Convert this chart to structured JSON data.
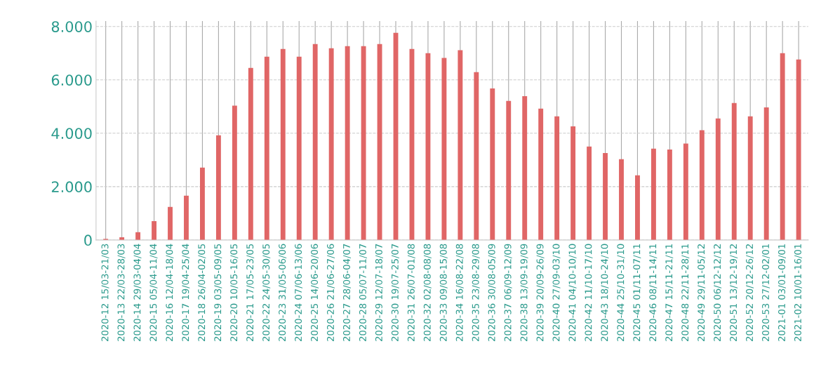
{
  "chart_data": {
    "type": "bar",
    "categories": [
      "2020-12 15/03-21/03",
      "2020-13 22/03-28/03",
      "2020-14 29/03-04/04",
      "2020-15 05/04-11/04",
      "2020-16 12/04-18/04",
      "2020-17 19/04-25/04",
      "2020-18 26/04-02/05",
      "2020-19 03/05-09/05",
      "2020-20 10/05-16/05",
      "2020-21 17/05-23/05",
      "2020-22 24/05-30/05",
      "2020-23 31/05-06/06",
      "2020-24 07/06-13/06",
      "2020-25 14/06-20/06",
      "2020-26 21/06-27/06",
      "2020-27 28/06-04/07",
      "2020-28 05/07-11/07",
      "2020-29 12/07-18/07",
      "2020-30 19/07-25/07",
      "2020-31 26/07-01/08",
      "2020-32 02/08-08/08",
      "2020-33 09/08-15/08",
      "2020-34 16/08-22/08",
      "2020-35 23/08-29/08",
      "2020-36 30/08-05/09",
      "2020-37 06/09-12/09",
      "2020-38 13/09-19/09",
      "2020-39 20/09-26/09",
      "2020-40 27/09-03/10",
      "2020-41 04/10-10/10",
      "2020-42 11/10-17/10",
      "2020-43 18/10-24/10",
      "2020-44 25/10-31/10",
      "2020-45 01/11-07/11",
      "2020-46 08/11-14/11",
      "2020-47 15/11-21/11",
      "2020-48 22/11-28/11",
      "2020-49 29/11-05/12",
      "2020-50 06/12-12/12",
      "2020-51 13/12-19/12",
      "2020-52 20/12-26/12",
      "2020-53 27/12-02/01",
      "2021-01 03/01-09/01",
      "2021-02 10/01-16/01"
    ],
    "values": [
      40,
      100,
      290,
      710,
      1240,
      1660,
      2710,
      3920,
      5030,
      6450,
      6870,
      7160,
      6870,
      7340,
      7180,
      7260,
      7260,
      7340,
      7760,
      7160,
      7000,
      6820,
      7110,
      6290,
      5680,
      5210,
      5390,
      4920,
      4630,
      4260,
      3500,
      3260,
      3030,
      2420,
      3420,
      3390,
      3610,
      4110,
      4550,
      5130,
      4630,
      4970,
      7000,
      6760
    ],
    "color": "#e06666",
    "ylim": [
      0,
      8200
    ],
    "yticks": [
      0,
      {
        "value": 2000,
        "label": "2.000"
      },
      {
        "value": 4000,
        "label": "4.000"
      },
      {
        "value": 6000,
        "label": "6.000"
      },
      {
        "value": 8000,
        "label": "8.000"
      }
    ],
    "grid": true
  }
}
